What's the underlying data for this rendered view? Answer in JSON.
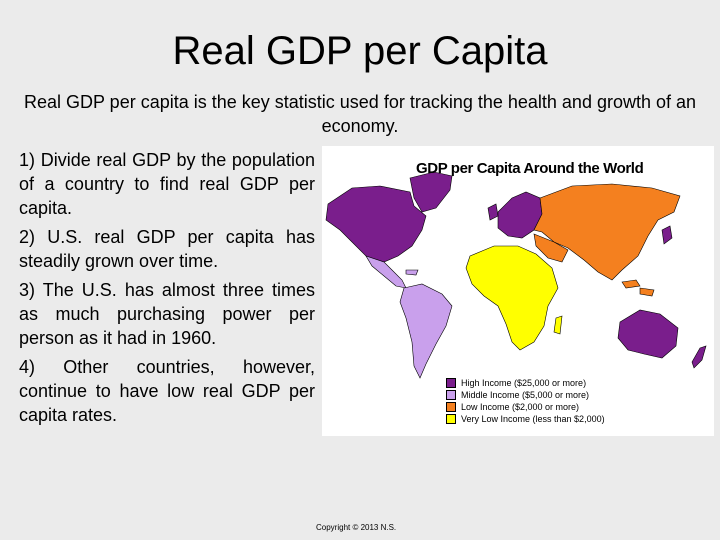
{
  "slide": {
    "title": "Real GDP per Capita",
    "intro": "Real GDP per capita is the key statistic used for tracking the health and growth of an economy.",
    "points": [
      "1) Divide real GDP by the population of a country to find real GDP per capita.",
      "2) U.S. real GDP per capita has steadily grown over time.",
      "3) The U.S. has almost three times as much purchasing power per person as it had in 1960.",
      "4) Other countries, however, continue to have low real GDP per capita rates."
    ],
    "copyright": "Copyright © 2013 N.S."
  },
  "map": {
    "title": "GDP per Capita Around the World",
    "legend": [
      {
        "label": "High Income ($25,000 or more)",
        "color": "#7a1e8c"
      },
      {
        "label": "Middle Income ($5,000 or more)",
        "color": "#c9a0ec"
      },
      {
        "label": "Low Income ($2,000 or more)",
        "color": "#f4801f"
      },
      {
        "label": "Very Low Income (less than $2,000)",
        "color": "#ffff00"
      }
    ]
  }
}
